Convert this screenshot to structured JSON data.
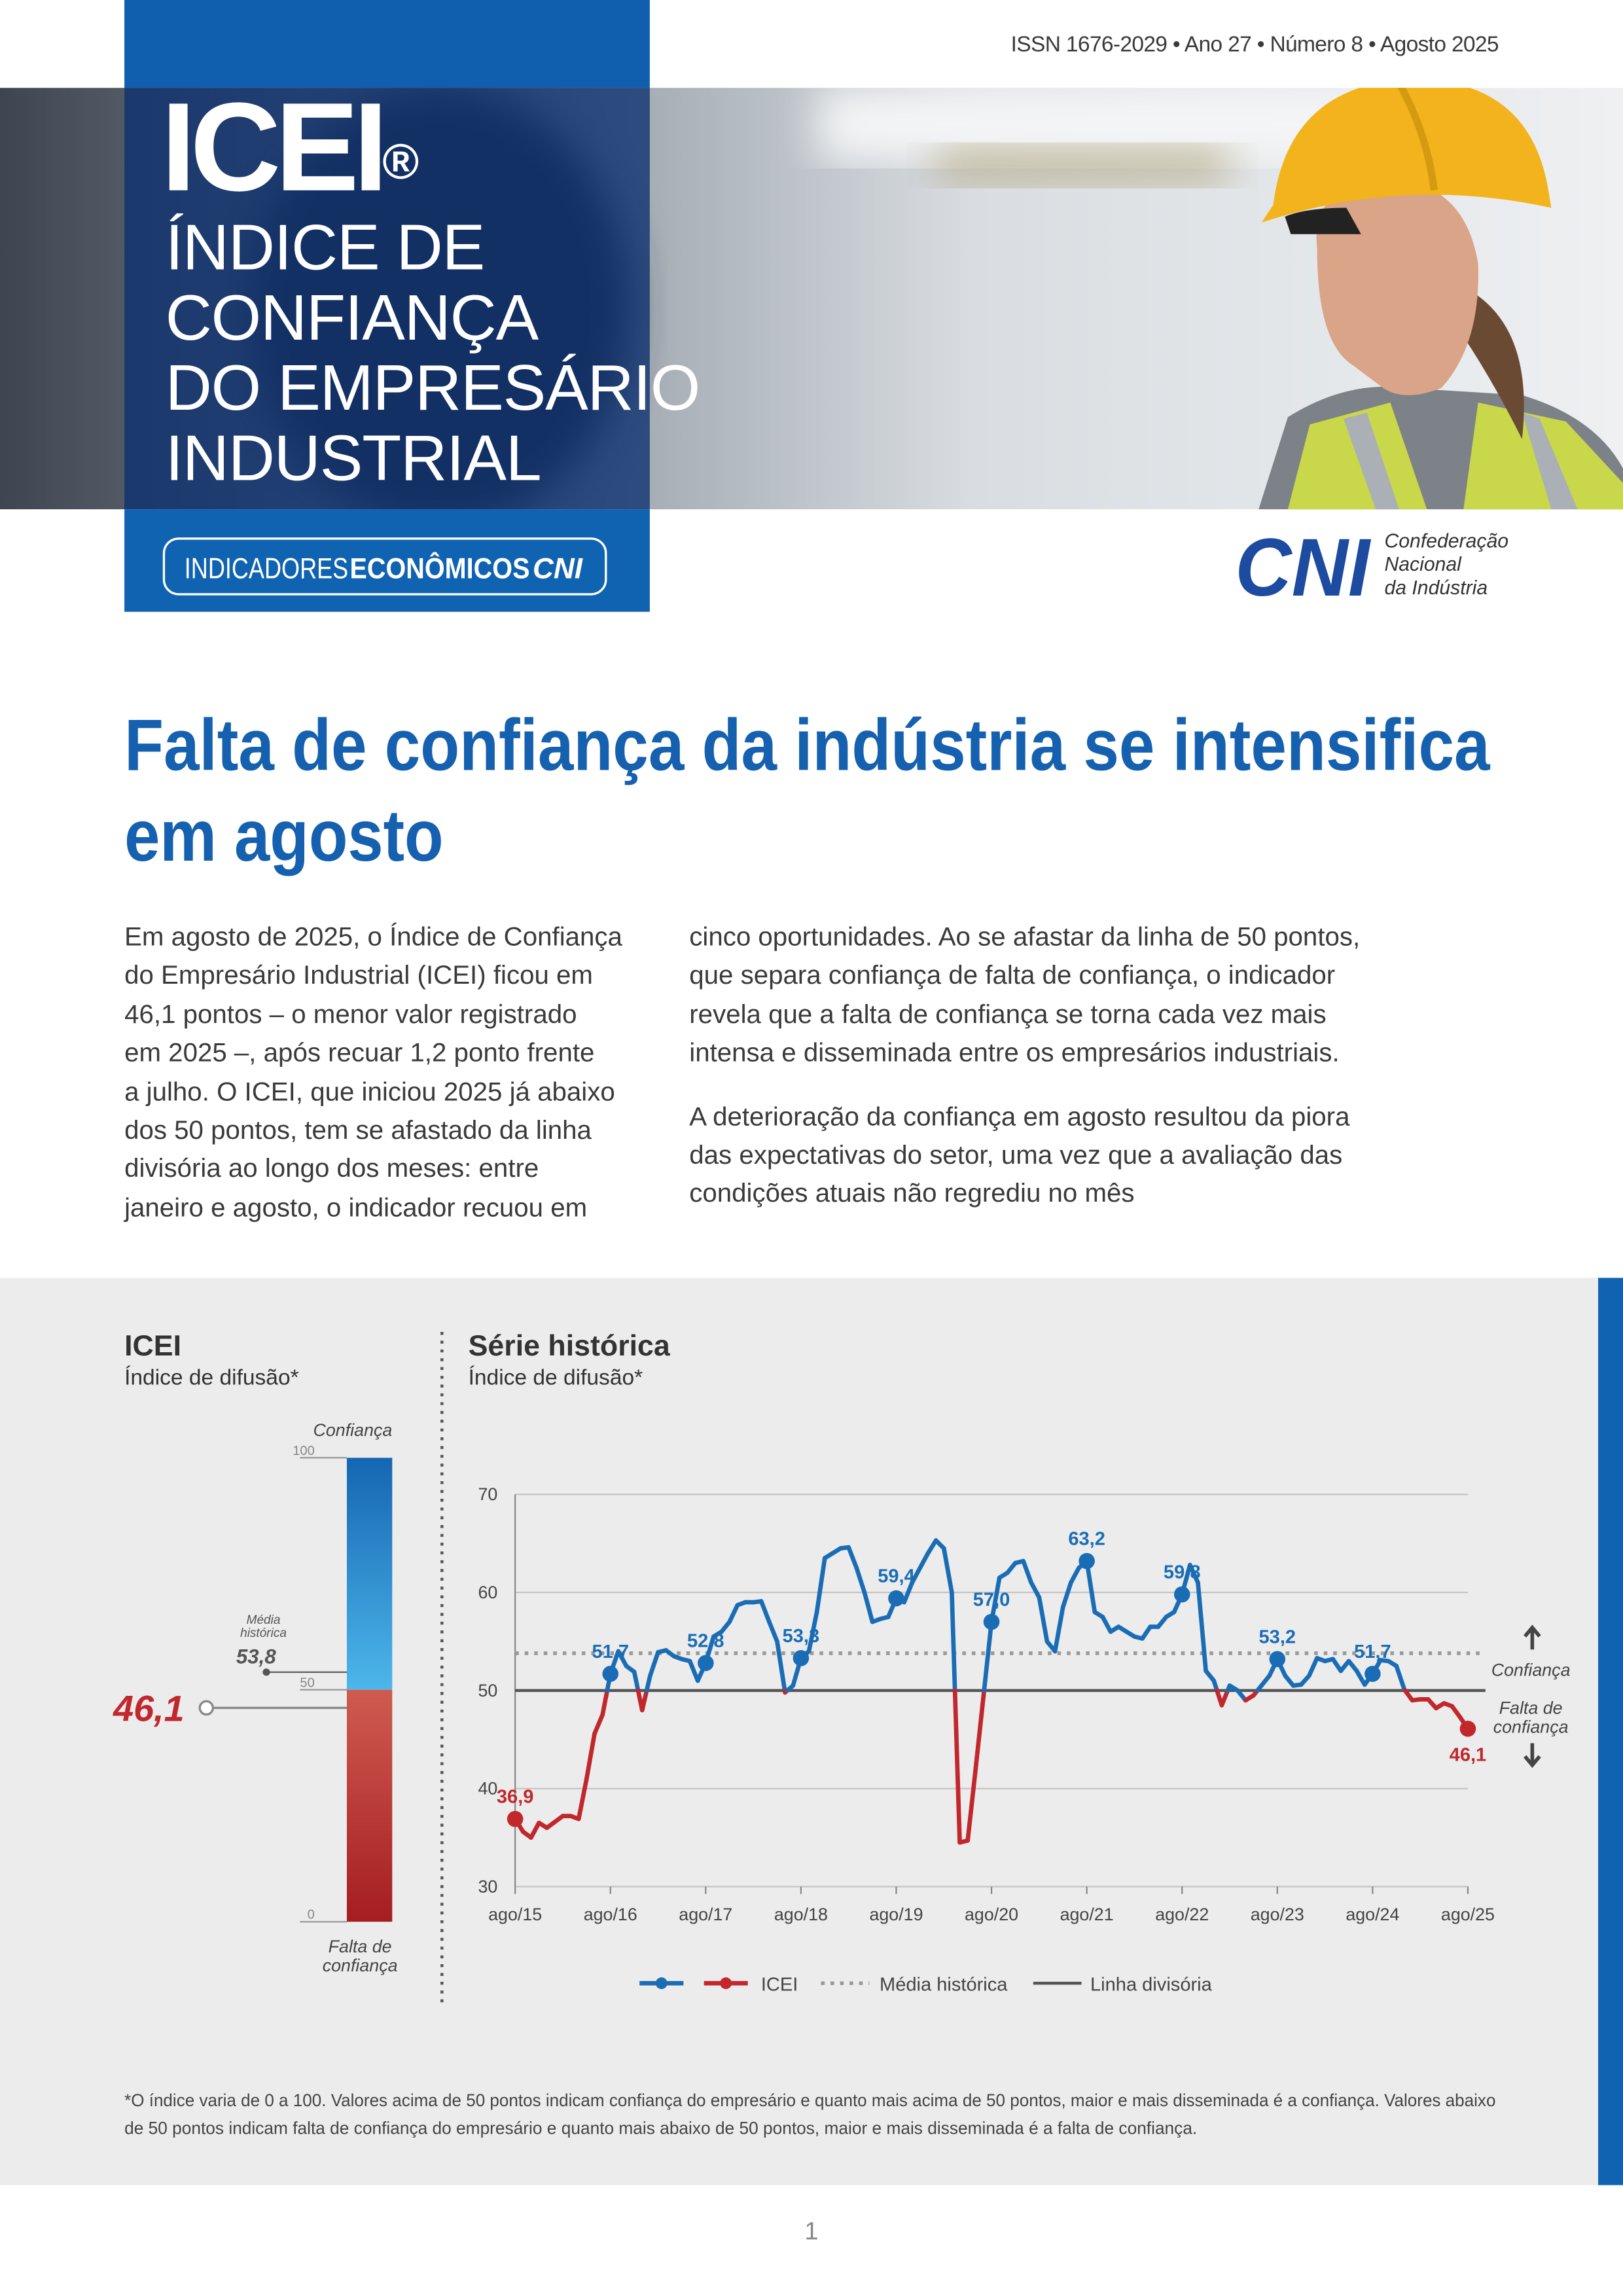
{
  "header": {
    "issn": "ISSN 1676-2029 • Ano 27 • Número 8 • Agosto 2025",
    "title": "ICEI",
    "title_mark": "®",
    "subtitle_lines": [
      "ÍNDICE DE",
      "CONFIANÇA",
      "DO EMPRESÁRIO",
      "INDUSTRIAL"
    ],
    "series_badge": [
      "INDICADORES",
      "ECONÔMICOS",
      "CNI"
    ],
    "logo": "CNI",
    "logo_text": [
      "Confederação",
      "Nacional",
      "da Indústria"
    ]
  },
  "headline": [
    "Falta de confiança da indústria se intensifica",
    "em agosto"
  ],
  "body": {
    "columns": [
      [
        [
          "Em agosto de 2025, o Índice de Confiança",
          "do Empresário Industrial (ICEI) ficou em",
          "46,1 pontos – o menor valor registrado",
          "em 2025 –, após recuar 1,2 ponto frente",
          "a julho. O ICEI, que iniciou 2025 já abaixo",
          "dos 50 pontos, tem se afastado da linha",
          "divisória ao longo dos meses: entre",
          "janeiro e agosto, o indicador recuou em"
        ]
      ],
      [
        [
          "cinco oportunidades. Ao se afastar da linha de 50 pontos,",
          "que separa confiança de falta de confiança, o indicador",
          "revela que a falta de confiança se torna cada vez mais",
          "intensa e disseminada entre os empresários industriais."
        ],
        [
          "A deterioração da confiança em agosto resultou da piora",
          "das expectativas do setor, uma vez que a avaliação das",
          "condições atuais não regrediu no mês"
        ]
      ]
    ]
  },
  "chart_data": [
    {
      "type": "gauge",
      "title": "ICEI",
      "subtitle": "Índice de difusão*",
      "ylim": [
        0,
        100
      ],
      "yticks": [
        0,
        50,
        100
      ],
      "value": 46.1,
      "value_label": "46,1",
      "mean": 53.8,
      "mean_label": "53,8",
      "mean_title": [
        "Média",
        "histórica"
      ],
      "top_label": "Confiança",
      "bottom_label": [
        "Falta de",
        "confiança"
      ],
      "color": "#c1272d"
    },
    {
      "type": "line",
      "title": "Série histórica",
      "subtitle": "Índice de difusão*",
      "categories": [
        "ago/15",
        null,
        null,
        null,
        null,
        null,
        null,
        null,
        null,
        null,
        null,
        null,
        "ago/16",
        null,
        null,
        null,
        null,
        null,
        null,
        null,
        null,
        null,
        null,
        null,
        "ago/17",
        null,
        null,
        null,
        null,
        null,
        null,
        null,
        null,
        null,
        null,
        null,
        "ago/18",
        null,
        null,
        null,
        null,
        null,
        null,
        null,
        null,
        null,
        null,
        null,
        "ago/19",
        null,
        null,
        null,
        null,
        null,
        null,
        null,
        null,
        null,
        null,
        null,
        "ago/20",
        null,
        null,
        null,
        null,
        null,
        null,
        null,
        null,
        null,
        null,
        null,
        "ago/21",
        null,
        null,
        null,
        null,
        null,
        null,
        null,
        null,
        null,
        null,
        null,
        "ago/22",
        null,
        null,
        null,
        null,
        null,
        null,
        null,
        null,
        null,
        null,
        null,
        "ago/23",
        null,
        null,
        null,
        null,
        null,
        null,
        null,
        null,
        null,
        null,
        null,
        "ago/24",
        null,
        null,
        null,
        null,
        null,
        null,
        null,
        null,
        null,
        null,
        null,
        "ago/25"
      ],
      "series": [
        {
          "name": "ICEI",
          "color": "#1a6db5",
          "below_color": "#c1272d",
          "values": [
            36.9,
            35.6,
            35.0,
            36.5,
            36.0,
            36.6,
            37.2,
            37.2,
            36.9,
            41.0,
            45.6,
            47.5,
            51.7,
            54.0,
            52.5,
            51.9,
            48.0,
            51.5,
            53.9,
            54.1,
            53.5,
            53.2,
            53.0,
            51.0,
            52.8,
            55.5,
            56.0,
            57.0,
            58.7,
            59.0,
            59.0,
            59.1,
            57.0,
            55.0,
            49.8,
            50.5,
            53.3,
            54.0,
            58.0,
            63.5,
            64.0,
            64.5,
            64.6,
            62.5,
            60.0,
            57.0,
            57.3,
            57.5,
            59.4,
            59.0,
            61.0,
            62.5,
            64.0,
            65.3,
            64.5,
            60.0,
            34.5,
            34.7,
            42.0,
            49.5,
            57.0,
            61.5,
            62.0,
            63.0,
            63.2,
            61.0,
            59.5,
            55.0,
            54.0,
            58.5,
            61.0,
            62.5,
            63.2,
            58.0,
            57.5,
            56.0,
            56.5,
            56.0,
            55.5,
            55.3,
            56.5,
            56.5,
            57.5,
            58.0,
            59.8,
            62.8,
            61.0,
            52.0,
            51.0,
            48.5,
            50.5,
            50.0,
            49.0,
            49.5,
            50.5,
            51.5,
            53.2,
            51.5,
            50.5,
            50.6,
            51.5,
            53.3,
            53.0,
            53.2,
            52.0,
            53.0,
            52.0,
            50.6,
            51.7,
            53.1,
            53.0,
            52.5,
            50.1,
            49.0,
            49.1,
            49.1,
            48.2,
            48.7,
            48.4,
            47.3,
            46.1
          ],
          "value_labels": [
            "36,9",
            null,
            null,
            null,
            null,
            null,
            null,
            null,
            null,
            null,
            null,
            null,
            "51,7",
            null,
            null,
            null,
            null,
            null,
            null,
            null,
            null,
            null,
            null,
            null,
            "52,8",
            null,
            null,
            null,
            null,
            null,
            null,
            null,
            null,
            null,
            null,
            null,
            "53,3",
            null,
            null,
            null,
            null,
            null,
            null,
            null,
            null,
            null,
            null,
            null,
            "59,4",
            null,
            null,
            null,
            null,
            null,
            null,
            null,
            null,
            null,
            null,
            null,
            "57,0",
            null,
            null,
            null,
            null,
            null,
            null,
            null,
            null,
            null,
            null,
            null,
            "63,2",
            null,
            null,
            null,
            null,
            null,
            null,
            null,
            null,
            null,
            null,
            null,
            "59,8",
            null,
            null,
            null,
            null,
            null,
            null,
            null,
            null,
            null,
            null,
            null,
            "53,2",
            null,
            null,
            null,
            null,
            null,
            null,
            null,
            null,
            null,
            null,
            null,
            "51,7",
            null,
            null,
            null,
            null,
            null,
            null,
            null,
            null,
            null,
            null,
            null,
            "46,1"
          ]
        }
      ],
      "reference_lines": [
        {
          "name": "Média histórica",
          "value": 53.8,
          "color": "#9a9a9a",
          "style": "dotted"
        },
        {
          "name": "Linha divisória",
          "value": 50,
          "color": "#555555",
          "style": "solid"
        }
      ],
      "ylim": [
        30,
        70
      ],
      "yticks": [
        30,
        40,
        50,
        60,
        70
      ],
      "grid": true,
      "annotations": {
        "above": "Confiança",
        "below": [
          "Falta de",
          "confiança"
        ]
      }
    }
  ],
  "footnote": [
    "*O índice varia de 0 a 100. Valores acima de 50 pontos indicam confiança do empresário e quanto mais acima de 50 pontos, maior e mais disseminada é a confiança. Valores abaixo",
    "de 50 pontos indicam falta de confiança do empresário e quanto mais abaixo de 50 pontos, maior e mais disseminada é a falta de confiança."
  ],
  "page_number": "1"
}
